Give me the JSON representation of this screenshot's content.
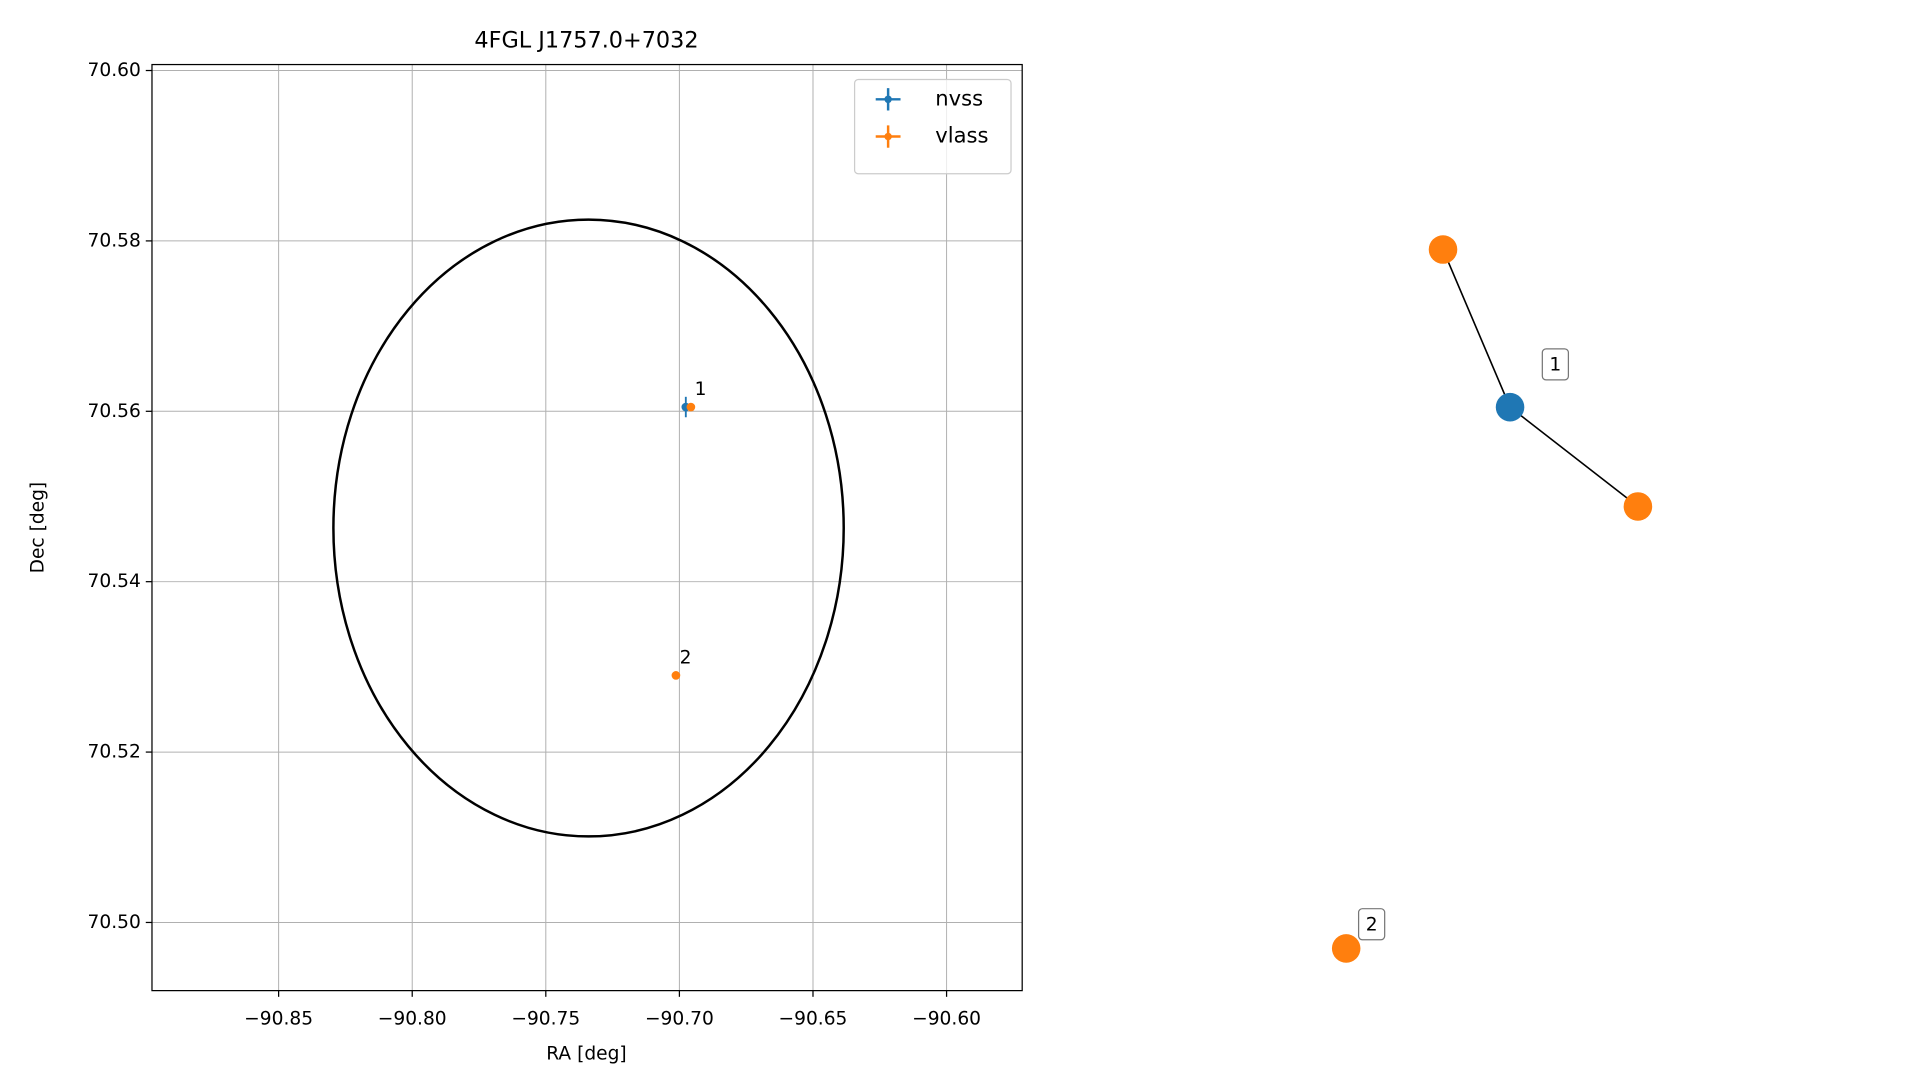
{
  "chart_data": {
    "type": "errorbar",
    "title": "4FGL J1757.0+7032",
    "x_label": "RA [deg]",
    "y_label": "Dec [deg]",
    "xlim": [
      -90.8974,
      -90.5717
    ],
    "ylim": [
      70.492,
      70.6007
    ],
    "xticks": [
      {
        "value": -90.85,
        "label": "−90.85"
      },
      {
        "value": -90.8,
        "label": "−90.80"
      },
      {
        "value": -90.75,
        "label": "−90.75"
      },
      {
        "value": -90.7,
        "label": "−90.70"
      },
      {
        "value": -90.65,
        "label": "−90.65"
      },
      {
        "value": -90.6,
        "label": "−90.60"
      }
    ],
    "yticks": [
      {
        "value": 70.5,
        "label": "70.50"
      },
      {
        "value": 70.52,
        "label": "70.52"
      },
      {
        "value": 70.54,
        "label": "70.54"
      },
      {
        "value": 70.56,
        "label": "70.56"
      },
      {
        "value": 70.58,
        "label": "70.58"
      },
      {
        "value": 70.6,
        "label": "70.60"
      }
    ],
    "grid": true,
    "legend": "upper right",
    "ellipse": {
      "center": [
        -90.734,
        70.5463
      ],
      "width": 0.191,
      "height": 0.0724,
      "color": "#000000"
    },
    "series": [
      {
        "name": "nvss",
        "color": "#1f77b4",
        "x": [
          -90.6976
        ],
        "y": [
          70.5605
        ],
        "xerr": [
          0.001
        ],
        "yerr": [
          0.0012
        ]
      },
      {
        "name": "vlass",
        "color": "#ff7f0e",
        "x": [
          -90.6957,
          -90.7013
        ],
        "y": [
          70.5605,
          70.529
        ],
        "xerr": [
          0.0003,
          0.0003
        ],
        "yerr": [
          0.0002,
          0.0002
        ],
        "labels": [
          "1",
          "2"
        ]
      }
    ]
  },
  "graph": {
    "labels": [
      "1",
      "2"
    ]
  }
}
